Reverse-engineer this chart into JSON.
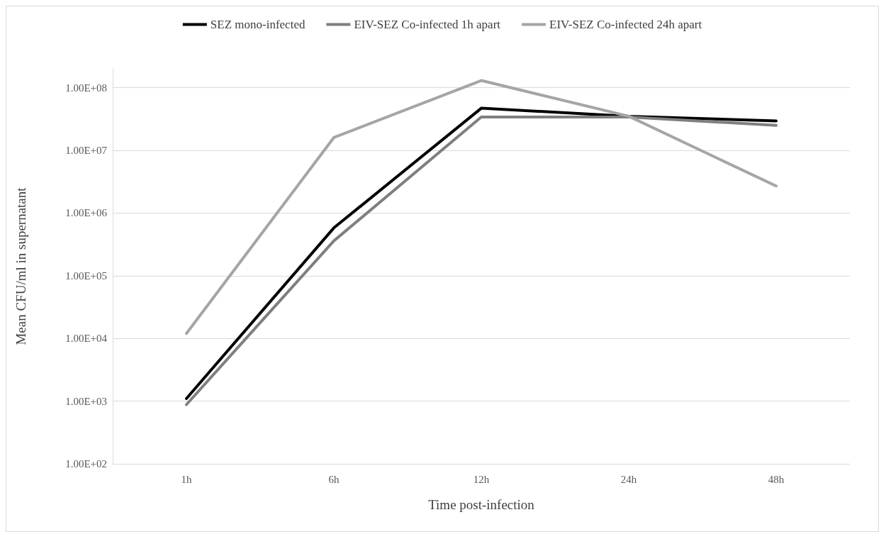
{
  "chart_data": {
    "type": "line",
    "xlabel": "Time post-infection",
    "ylabel": "Mean CFU/ml in supernatant",
    "categories": [
      "1h",
      "6h",
      "12h",
      "24h",
      "48h"
    ],
    "series": [
      {
        "name": "SEZ mono-infected",
        "color": "#000000",
        "values": [
          1100,
          580000,
          47000000,
          35000000,
          29500000
        ]
      },
      {
        "name": "EIV-SEZ Co-infected 1h apart",
        "color": "#7f7f7f",
        "values": [
          880,
          360000,
          34000000,
          34000000,
          25000000
        ]
      },
      {
        "name": "EIV-SEZ Co-infected 24h apart",
        "color": "#a5a5a5",
        "values": [
          12000,
          16000000,
          130000000,
          35000000,
          2700000
        ]
      }
    ],
    "log": "y",
    "ylim": [
      100,
      200000000
    ],
    "yticks": [
      {
        "value": 100,
        "label": "1.00E+02"
      },
      {
        "value": 1000,
        "label": "1.00E+03"
      },
      {
        "value": 10000,
        "label": "1.00E+04"
      },
      {
        "value": 100000,
        "label": "1.00E+05"
      },
      {
        "value": 1000000,
        "label": "1.00E+06"
      },
      {
        "value": 10000000,
        "label": "1.00E+07"
      },
      {
        "value": 100000000,
        "label": "1.00E+08"
      }
    ],
    "grid": "y",
    "legend": "top",
    "marker": "none",
    "line_style": "solid"
  }
}
